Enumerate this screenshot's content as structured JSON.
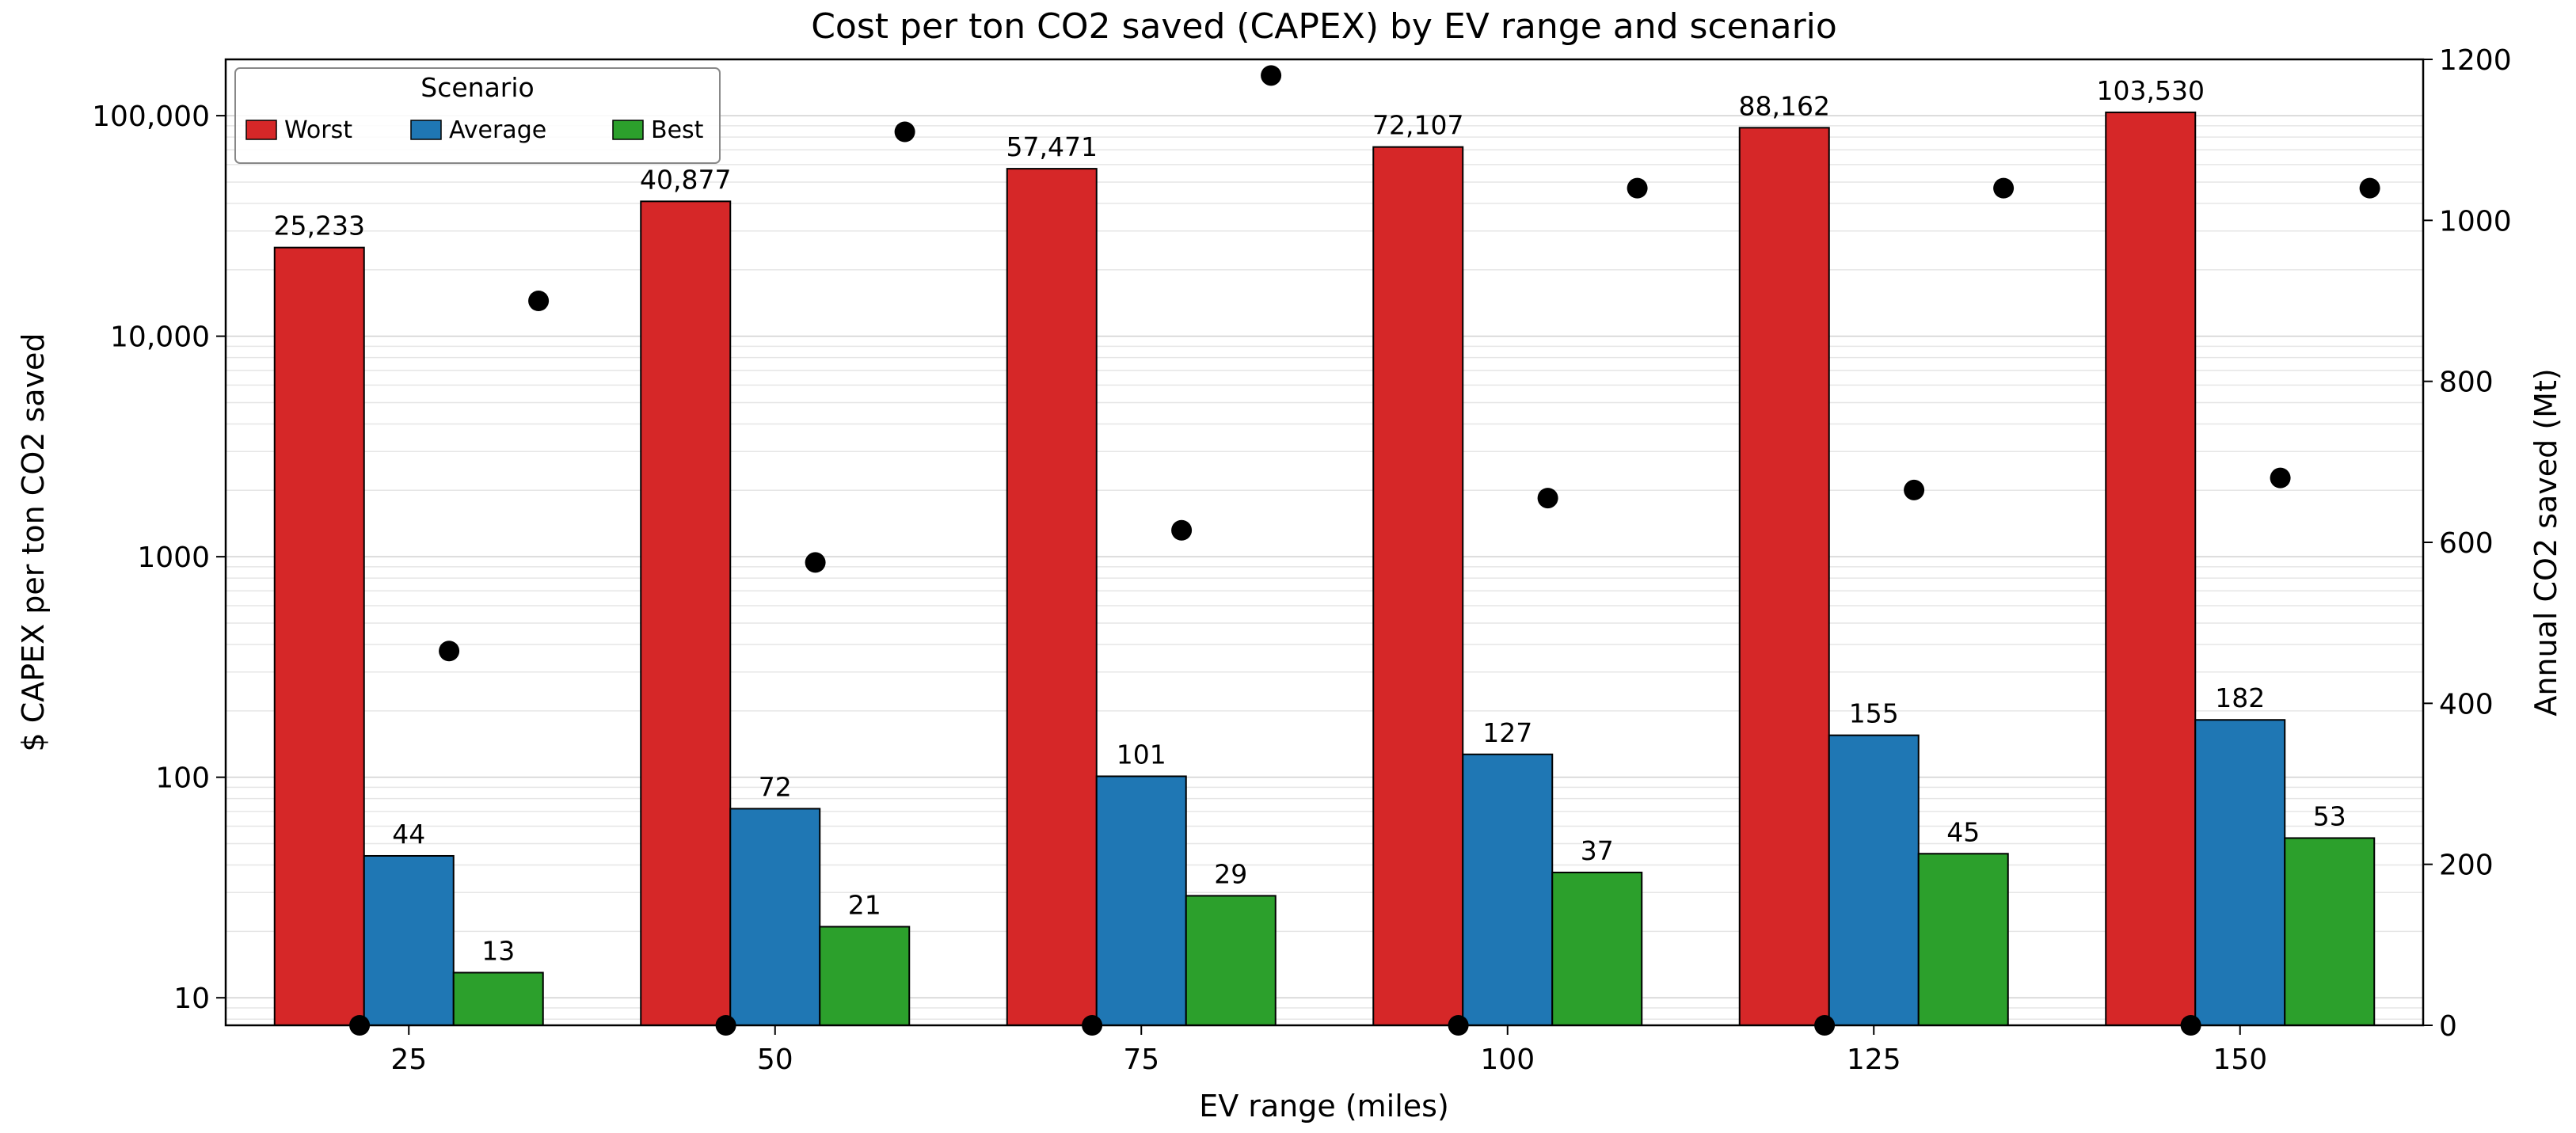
{
  "chart_data": {
    "type": "bar",
    "title": "Cost per ton CO2 saved (CAPEX) by EV range and scenario",
    "xlabel": "EV range (miles)",
    "ylabel": "$ CAPEX per ton CO2 saved",
    "y2label": "Annual CO2 saved (Mt)",
    "categories": [
      "25",
      "50",
      "75",
      "100",
      "125",
      "150"
    ],
    "yscale": "log",
    "ylim": [
      7.5,
      180000
    ],
    "y_ticks": [
      10,
      100,
      1000,
      10000,
      100000
    ],
    "y_tick_labels": [
      "10",
      "100",
      "1000",
      "10,000",
      "100,000"
    ],
    "y2lim": [
      0,
      1200
    ],
    "y2_ticks": [
      0,
      200,
      400,
      600,
      800,
      1000,
      1200
    ],
    "y2_tick_labels": [
      "0",
      "200",
      "400",
      "600",
      "800",
      "1000",
      "1200"
    ],
    "grid": "horizontal minor (log)",
    "legend": {
      "title": "Scenario",
      "placement": "top-left",
      "columns": 3
    },
    "series": [
      {
        "name": "Worst",
        "color": "#d62728",
        "values": [
          25233,
          40877,
          57471,
          72107,
          88162,
          103530
        ],
        "labels": [
          "25,233",
          "40,877",
          "57,471",
          "72,107",
          "88,162",
          "103,530"
        ]
      },
      {
        "name": "Average",
        "color": "#1f77b4",
        "values": [
          44,
          72,
          101,
          127,
          155,
          182
        ],
        "labels": [
          "44",
          "72",
          "101",
          "127",
          "155",
          "182"
        ]
      },
      {
        "name": "Best",
        "color": "#2ca02c",
        "values": [
          13,
          21,
          29,
          37,
          45,
          53
        ],
        "labels": [
          "13",
          "21",
          "29",
          "37",
          "45",
          "53"
        ]
      }
    ],
    "secondary_points": {
      "axis": "right",
      "marker": "circle",
      "color": "#000000",
      "worst": [
        0,
        0,
        0,
        0,
        0,
        0
      ],
      "average": [
        465,
        575,
        615,
        655,
        665,
        680
      ],
      "best": [
        900,
        1110,
        1180,
        1040,
        1040,
        1040
      ]
    }
  }
}
